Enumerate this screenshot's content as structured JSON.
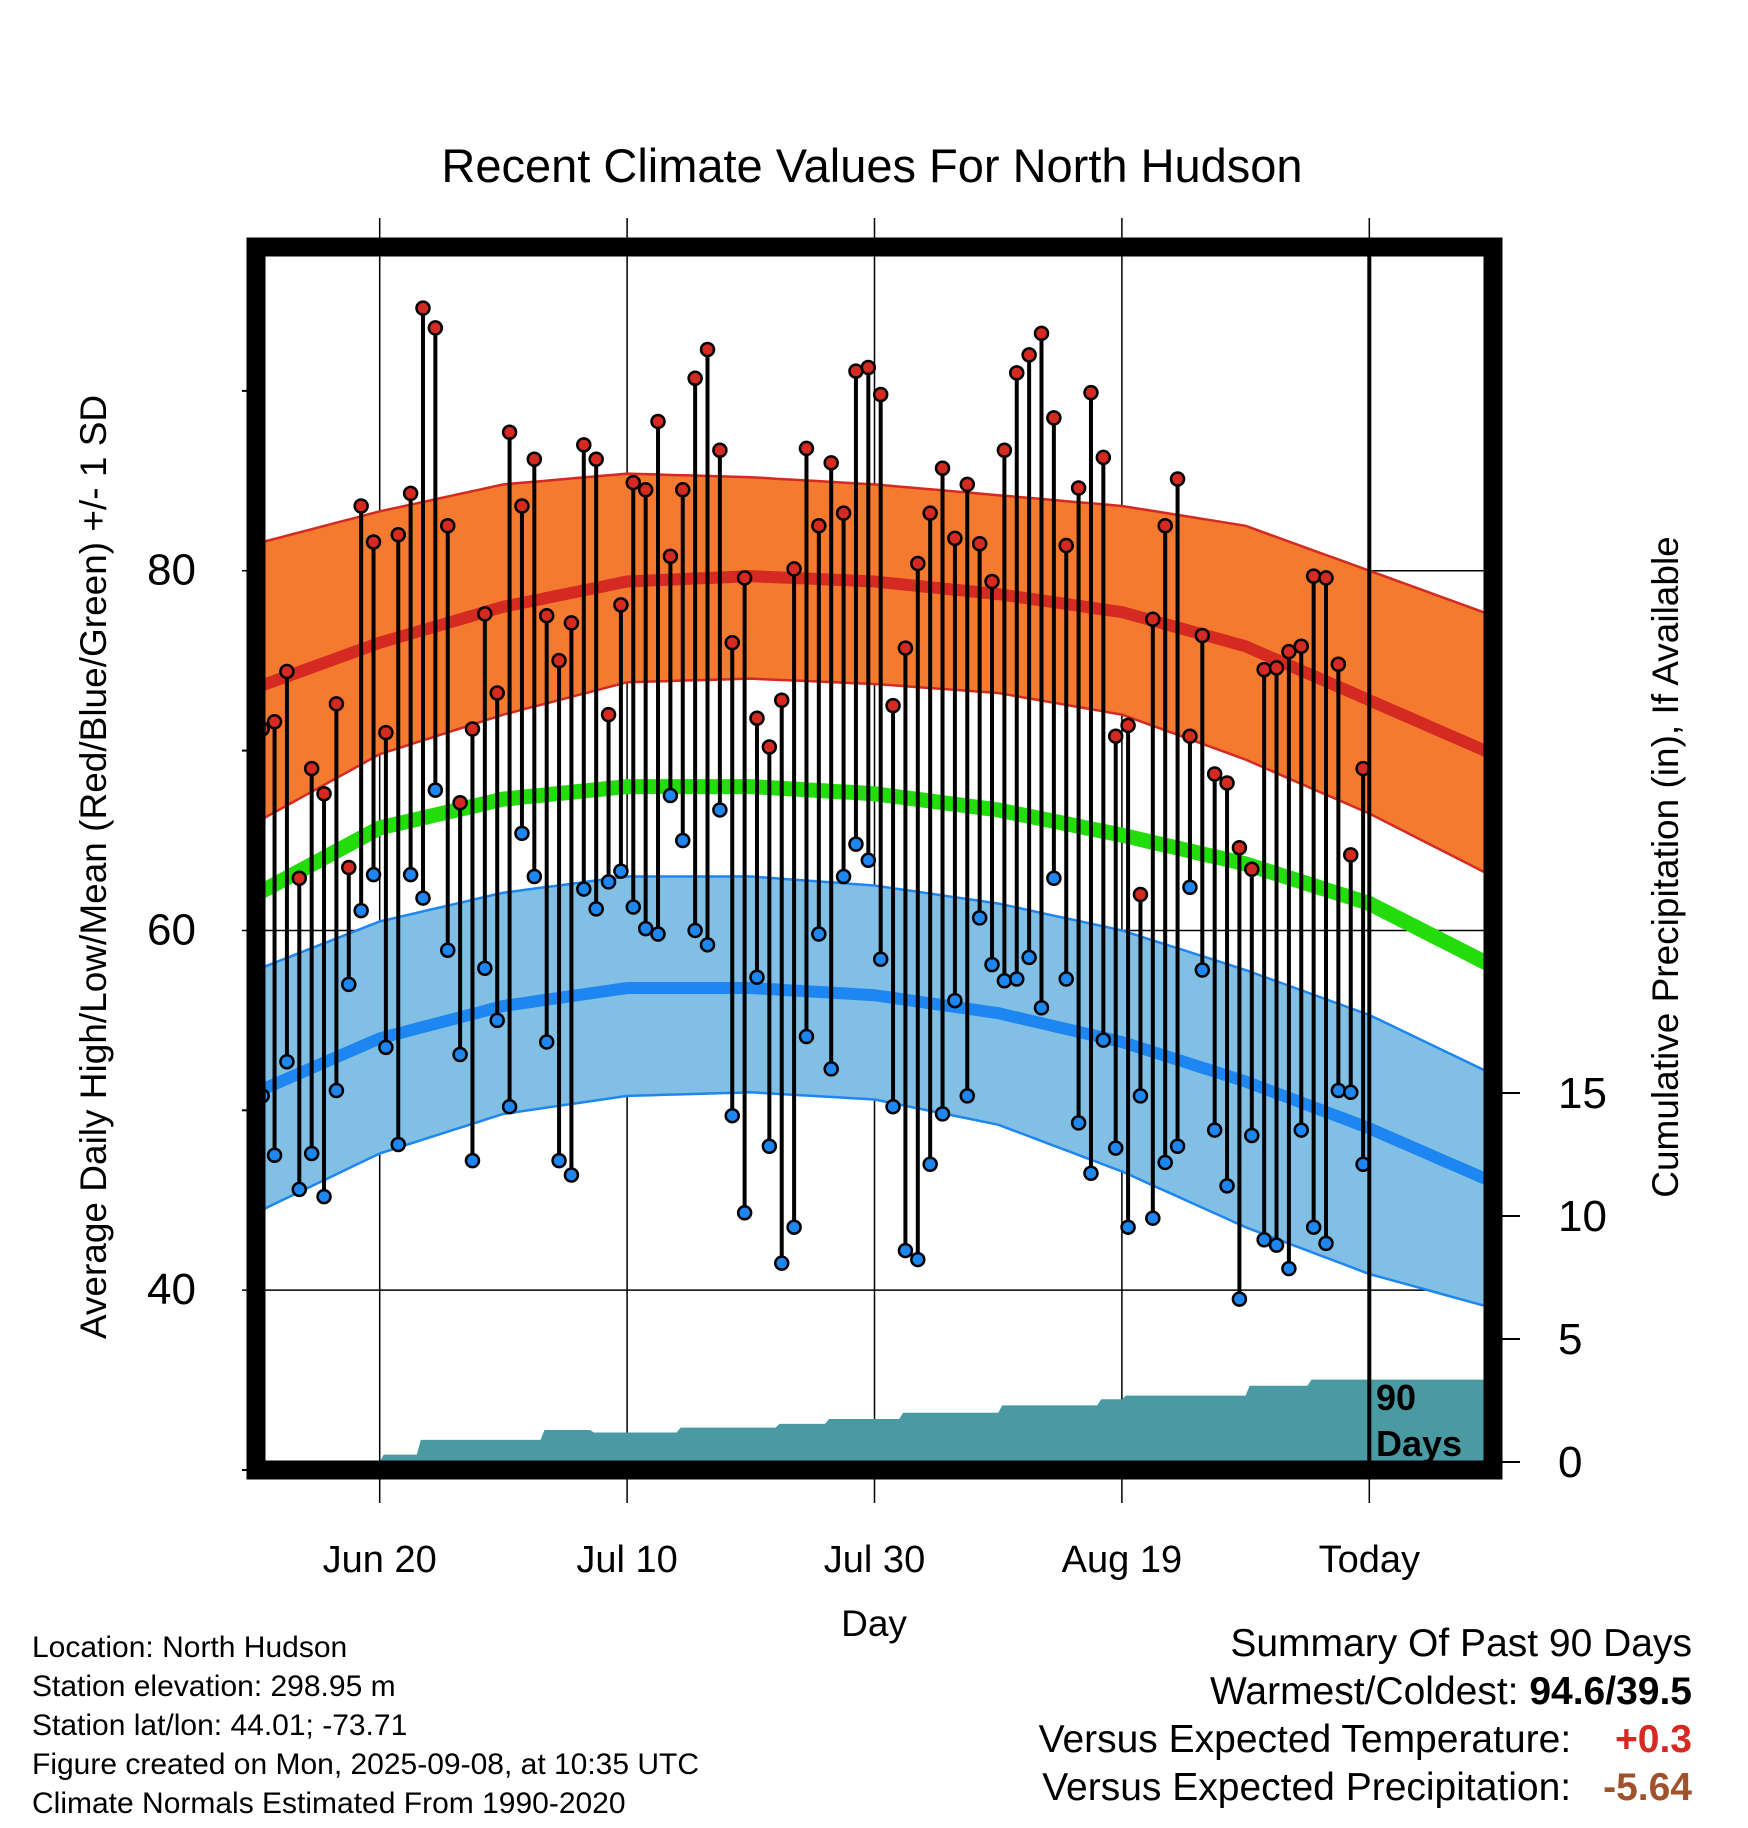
{
  "chart_data": {
    "type": "line",
    "title": "Recent Climate Values For North Hudson",
    "xlabel": "Day",
    "ylabel": "Average Daily High/Low/Mean (Red/Blue/Green) +/- 1 SD",
    "y2label": "Cumulative Precipitation (in), If Available",
    "ylim": [
      30,
      98
    ],
    "y2lim": [
      0,
      30
    ],
    "x_ticks": [
      "Jun 20",
      "Jul 10",
      "Jul 30",
      "Aug 19",
      "Today"
    ],
    "y_ticks": [
      "40",
      "60",
      "80"
    ],
    "y2_ticks": [
      "0",
      "5",
      "10",
      "15"
    ],
    "window_label_line1": "90",
    "window_label_line2": "Days",
    "colors": {
      "high_band": "#f47a30",
      "high_line": "#d42a22",
      "low_band": "#82bfe4",
      "low_line": "#1e86f0",
      "mean_line": "#22dd0a",
      "precip": "#4a9aa3",
      "high_dot": "#d42a22",
      "low_dot": "#1e86f0"
    },
    "x_days": [
      -90,
      10
    ],
    "normals": {
      "days": [
        -90,
        -80,
        -70,
        -60,
        -50,
        -40,
        -30,
        -20,
        -10,
        0,
        10
      ],
      "high_mean": [
        73.5,
        76.0,
        78.0,
        79.4,
        79.7,
        79.4,
        78.7,
        77.7,
        75.8,
        72.8,
        69.8
      ],
      "high_upper": [
        81.5,
        83.3,
        84.8,
        85.4,
        85.2,
        84.8,
        84.2,
        83.6,
        82.5,
        80.0,
        77.5
      ],
      "high_lower": [
        66.0,
        69.8,
        72.0,
        73.8,
        74.0,
        73.7,
        73.2,
        72.0,
        69.5,
        66.5,
        63.0
      ],
      "mean": [
        62.0,
        65.7,
        67.3,
        68.0,
        68.0,
        67.6,
        66.7,
        65.3,
        63.7,
        61.5,
        58.0
      ],
      "low_mean": [
        51.0,
        54.0,
        55.8,
        56.8,
        56.8,
        56.4,
        55.4,
        53.8,
        51.6,
        49.0,
        46.0
      ],
      "low_upper": [
        57.8,
        60.5,
        62.1,
        63.0,
        63.0,
        62.5,
        61.5,
        60.0,
        57.8,
        55.3,
        52.0
      ],
      "low_lower": [
        44.3,
        47.6,
        49.8,
        50.8,
        51.0,
        50.6,
        49.2,
        46.6,
        43.5,
        40.9,
        39.0
      ]
    },
    "highs": [
      71.2,
      71.6,
      74.4,
      62.9,
      69.0,
      67.6,
      72.6,
      63.5,
      83.6,
      81.6,
      71.0,
      82.0,
      84.3,
      94.6,
      93.5,
      82.5,
      67.1,
      71.2,
      77.6,
      73.2,
      87.7,
      83.6,
      86.2,
      77.5,
      75.0,
      77.1,
      87.0,
      86.2,
      72.0,
      78.1,
      84.9,
      84.5,
      88.3,
      80.8,
      84.5,
      90.7,
      92.3,
      86.7,
      76.0,
      79.6,
      71.8,
      70.2,
      72.8,
      80.1,
      86.8,
      82.5,
      86.0,
      83.2,
      91.1,
      91.3,
      89.8,
      72.5,
      75.7,
      80.4,
      83.2,
      85.7,
      81.8,
      84.8,
      81.5,
      79.4,
      86.7,
      91.0,
      92.0,
      93.2,
      88.5,
      81.4,
      84.6,
      89.9,
      86.3,
      70.8,
      71.4,
      62.0,
      77.3,
      82.5,
      85.1,
      70.8,
      76.4,
      68.7,
      68.2,
      64.6,
      63.4,
      74.5,
      74.6,
      75.5,
      75.8,
      79.7,
      79.6,
      74.8,
      64.2,
      69.0
    ],
    "lows": [
      50.8,
      47.5,
      52.7,
      45.6,
      47.6,
      45.2,
      51.1,
      57.0,
      61.1,
      63.1,
      53.5,
      48.1,
      63.1,
      61.8,
      67.8,
      58.9,
      53.1,
      47.2,
      57.9,
      55.0,
      50.2,
      65.4,
      63.0,
      53.8,
      47.2,
      46.4,
      62.3,
      61.2,
      62.7,
      63.3,
      61.3,
      60.1,
      59.8,
      67.5,
      65.0,
      60.0,
      59.2,
      66.7,
      49.7,
      44.3,
      57.4,
      48.0,
      41.5,
      43.5,
      54.1,
      59.8,
      52.3,
      63.0,
      64.8,
      63.9,
      58.4,
      50.2,
      42.2,
      41.7,
      47.0,
      49.8,
      56.1,
      50.8,
      60.7,
      58.1,
      57.2,
      57.3,
      58.5,
      55.7,
      62.9,
      57.3,
      49.3,
      46.5,
      53.9,
      47.9,
      43.5,
      50.8,
      44.0,
      47.1,
      48.0,
      62.4,
      57.8,
      48.9,
      45.8,
      39.5,
      48.6,
      42.8,
      42.5,
      41.2,
      48.9,
      43.5,
      42.6,
      51.1,
      51.0,
      47.0
    ],
    "precip_steps": [
      {
        "day": -90,
        "value": 0.0
      },
      {
        "day": -80,
        "value": 0.3
      },
      {
        "day": -77,
        "value": 0.9
      },
      {
        "day": -67,
        "value": 1.3
      },
      {
        "day": -63,
        "value": 1.2
      },
      {
        "day": -56,
        "value": 1.4
      },
      {
        "day": -48,
        "value": 1.55
      },
      {
        "day": -44,
        "value": 1.75
      },
      {
        "day": -38,
        "value": 2.0
      },
      {
        "day": -30,
        "value": 2.3
      },
      {
        "day": -22,
        "value": 2.55
      },
      {
        "day": -20,
        "value": 2.7
      },
      {
        "day": -10,
        "value": 3.1
      },
      {
        "day": -5,
        "value": 3.35
      },
      {
        "day": 0,
        "value": 3.35
      },
      {
        "day": 10,
        "value": 3.35
      }
    ]
  },
  "station_info": {
    "location": "Location: North Hudson",
    "elevation": "Station elevation: 298.95 m",
    "latlon": "Station lat/lon: 44.01; -73.71",
    "created": "Figure created on Mon, 2025-09-08, at 10:35 UTC",
    "normals": "Climate Normals Estimated From 1990-2020"
  },
  "summary": {
    "title": "Summary Of Past 90 Days",
    "warm_cold_label": "Warmest/Coldest:",
    "warm_cold_value": "94.6/39.5",
    "temp_label": "Versus Expected Temperature:",
    "temp_value": "+0.3",
    "temp_color": "#d42a22",
    "precip_label": "Versus Expected Precipitation:",
    "precip_value": "-5.64",
    "precip_color": "#a0522d"
  }
}
